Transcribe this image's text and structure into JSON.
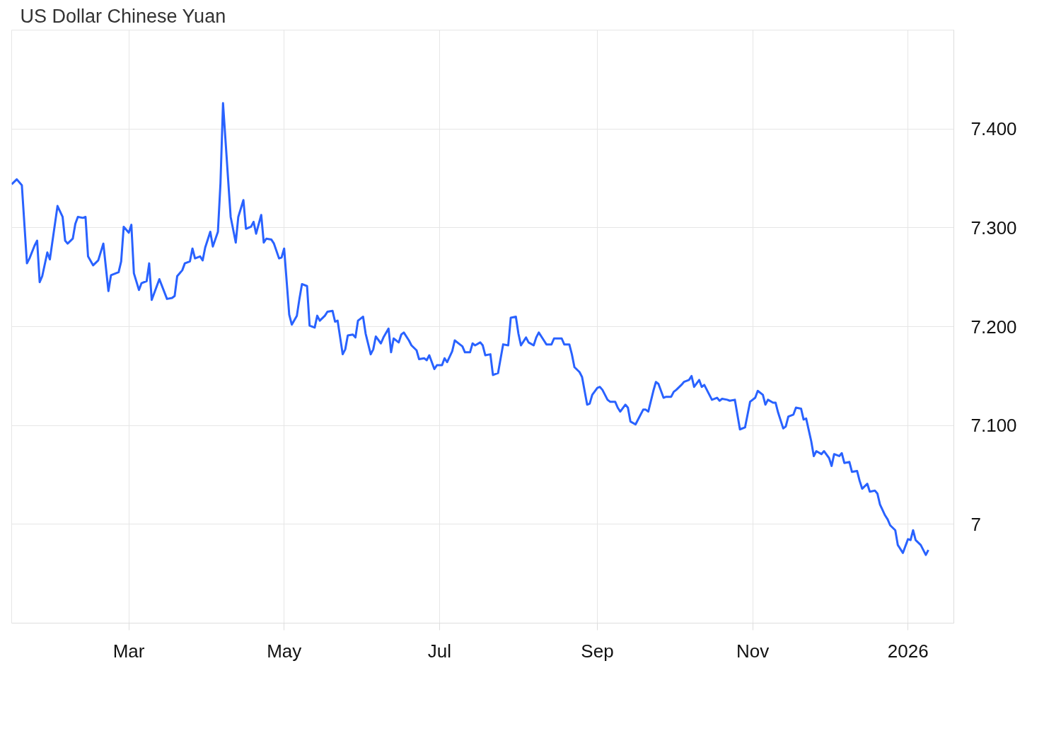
{
  "chart_data": {
    "type": "line",
    "title": "US Dollar Chinese Yuan",
    "x": [
      "2025-01-14",
      "2025-01-16",
      "2025-01-18",
      "2025-01-20",
      "2025-01-21",
      "2025-01-23",
      "2025-01-24",
      "2025-01-25",
      "2025-01-26",
      "2025-01-28",
      "2025-01-29",
      "2025-02-01",
      "2025-02-03",
      "2025-02-04",
      "2025-02-05",
      "2025-02-07",
      "2025-02-08",
      "2025-02-09",
      "2025-02-11",
      "2025-02-12",
      "2025-02-13",
      "2025-02-15",
      "2025-02-17",
      "2025-02-19",
      "2025-02-21",
      "2025-02-22",
      "2025-02-25",
      "2025-02-26",
      "2025-02-27",
      "2025-03-01",
      "2025-03-02",
      "2025-03-03",
      "2025-03-05",
      "2025-03-06",
      "2025-03-08",
      "2025-03-09",
      "2025-03-10",
      "2025-03-12",
      "2025-03-13",
      "2025-03-16",
      "2025-03-18",
      "2025-03-19",
      "2025-03-20",
      "2025-03-22",
      "2025-03-23",
      "2025-03-25",
      "2025-03-26",
      "2025-03-27",
      "2025-03-29",
      "2025-03-30",
      "2025-03-31",
      "2025-04-02",
      "2025-04-03",
      "2025-04-05",
      "2025-04-06",
      "2025-04-07",
      "2025-04-09",
      "2025-04-10",
      "2025-04-12",
      "2025-04-13",
      "2025-04-15",
      "2025-04-16",
      "2025-04-18",
      "2025-04-19",
      "2025-04-20",
      "2025-04-22",
      "2025-04-23",
      "2025-04-24",
      "2025-04-26",
      "2025-04-27",
      "2025-04-29",
      "2025-04-30",
      "2025-05-01",
      "2025-05-03",
      "2025-05-04",
      "2025-05-06",
      "2025-05-07",
      "2025-05-08",
      "2025-05-10",
      "2025-05-11",
      "2025-05-13",
      "2025-05-14",
      "2025-05-15",
      "2025-05-17",
      "2025-05-18",
      "2025-05-20",
      "2025-05-21",
      "2025-05-22",
      "2025-05-24",
      "2025-05-25",
      "2025-05-26",
      "2025-05-28",
      "2025-05-29",
      "2025-05-30",
      "2025-06-01",
      "2025-06-02",
      "2025-06-04",
      "2025-06-05",
      "2025-06-06",
      "2025-06-08",
      "2025-06-09",
      "2025-06-11",
      "2025-06-12",
      "2025-06-13",
      "2025-06-15",
      "2025-06-16",
      "2025-06-17",
      "2025-06-19",
      "2025-06-20",
      "2025-06-22",
      "2025-06-23",
      "2025-06-25",
      "2025-06-26",
      "2025-06-27",
      "2025-06-29",
      "2025-06-30",
      "2025-07-02",
      "2025-07-03",
      "2025-07-04",
      "2025-07-06",
      "2025-07-07",
      "2025-07-09",
      "2025-07-10",
      "2025-07-11",
      "2025-07-13",
      "2025-07-14",
      "2025-07-15",
      "2025-07-17",
      "2025-07-18",
      "2025-07-19",
      "2025-07-21",
      "2025-07-22",
      "2025-07-24",
      "2025-07-26",
      "2025-07-28",
      "2025-07-29",
      "2025-07-31",
      "2025-08-01",
      "2025-08-02",
      "2025-08-04",
      "2025-08-05",
      "2025-08-07",
      "2025-08-08",
      "2025-08-09",
      "2025-08-11",
      "2025-08-12",
      "2025-08-14",
      "2025-08-15",
      "2025-08-16",
      "2025-08-18",
      "2025-08-19",
      "2025-08-21",
      "2025-08-22",
      "2025-08-23",
      "2025-08-25",
      "2025-08-26",
      "2025-08-28",
      "2025-08-29",
      "2025-08-30",
      "2025-09-01",
      "2025-09-02",
      "2025-09-03",
      "2025-09-05",
      "2025-09-06",
      "2025-09-08",
      "2025-09-09",
      "2025-09-10",
      "2025-09-12",
      "2025-09-13",
      "2025-09-14",
      "2025-09-16",
      "2025-09-17",
      "2025-09-19",
      "2025-09-20",
      "2025-09-21",
      "2025-09-23",
      "2025-09-24",
      "2025-09-25",
      "2025-09-27",
      "2025-09-28",
      "2025-09-30",
      "2025-10-01",
      "2025-10-02",
      "2025-10-04",
      "2025-10-05",
      "2025-10-07",
      "2025-10-08",
      "2025-10-09",
      "2025-10-11",
      "2025-10-12",
      "2025-10-13",
      "2025-10-15",
      "2025-10-16",
      "2025-10-18",
      "2025-10-19",
      "2025-10-20",
      "2025-10-22",
      "2025-10-23",
      "2025-10-25",
      "2025-10-26",
      "2025-10-27",
      "2025-10-29",
      "2025-10-30",
      "2025-10-31",
      "2025-11-02",
      "2025-11-03",
      "2025-11-05",
      "2025-11-06",
      "2025-11-07",
      "2025-11-09",
      "2025-11-10",
      "2025-11-11",
      "2025-11-13",
      "2025-11-14",
      "2025-11-15",
      "2025-11-17",
      "2025-11-18",
      "2025-11-20",
      "2025-11-21",
      "2025-11-22",
      "2025-11-24",
      "2025-11-25",
      "2025-11-26",
      "2025-11-28",
      "2025-11-29",
      "2025-12-01",
      "2025-12-02",
      "2025-12-03",
      "2025-12-05",
      "2025-12-06",
      "2025-12-07",
      "2025-12-09",
      "2025-12-10",
      "2025-12-12",
      "2025-12-13",
      "2025-12-14",
      "2025-12-16",
      "2025-12-17",
      "2025-12-19",
      "2025-12-20",
      "2025-12-21",
      "2025-12-23",
      "2025-12-24",
      "2025-12-25",
      "2025-12-27",
      "2025-12-28",
      "2025-12-30",
      "2026-01-01",
      "2026-01-02",
      "2026-01-03",
      "2026-01-04",
      "2026-01-06",
      "2026-01-08",
      "2026-01-09"
    ],
    "series": [
      {
        "color": "#2962ff",
        "values": [
          7.344,
          7.349,
          7.343,
          7.264,
          7.269,
          7.282,
          7.287,
          7.245,
          7.251,
          7.275,
          7.268,
          7.322,
          7.311,
          7.287,
          7.284,
          7.289,
          7.304,
          7.311,
          7.31,
          7.311,
          7.271,
          7.262,
          7.267,
          7.284,
          7.236,
          7.252,
          7.255,
          7.266,
          7.301,
          7.295,
          7.303,
          7.254,
          7.237,
          7.244,
          7.246,
          7.264,
          7.227,
          7.241,
          7.248,
          7.228,
          7.229,
          7.231,
          7.251,
          7.257,
          7.264,
          7.266,
          7.279,
          7.269,
          7.271,
          7.267,
          7.28,
          7.296,
          7.281,
          7.296,
          7.345,
          7.426,
          7.349,
          7.311,
          7.285,
          7.311,
          7.328,
          7.299,
          7.301,
          7.306,
          7.294,
          7.313,
          7.285,
          7.289,
          7.288,
          7.284,
          7.269,
          7.27,
          7.279,
          7.212,
          7.202,
          7.211,
          7.228,
          7.243,
          7.241,
          7.201,
          7.199,
          7.211,
          7.206,
          7.211,
          7.215,
          7.216,
          7.205,
          7.206,
          7.172,
          7.177,
          7.191,
          7.192,
          7.189,
          7.206,
          7.21,
          7.193,
          7.172,
          7.177,
          7.19,
          7.183,
          7.189,
          7.198,
          7.174,
          7.188,
          7.184,
          7.192,
          7.194,
          7.186,
          7.181,
          7.176,
          7.167,
          7.168,
          7.166,
          7.171,
          7.157,
          7.161,
          7.161,
          7.168,
          7.164,
          7.175,
          7.186,
          7.182,
          7.18,
          7.174,
          7.174,
          7.183,
          7.181,
          7.184,
          7.181,
          7.171,
          7.172,
          7.151,
          7.153,
          7.182,
          7.181,
          7.209,
          7.21,
          7.193,
          7.181,
          7.189,
          7.184,
          7.181,
          7.189,
          7.194,
          7.186,
          7.182,
          7.182,
          7.188,
          7.188,
          7.188,
          7.182,
          7.182,
          7.172,
          7.159,
          7.154,
          7.149,
          7.121,
          7.122,
          7.131,
          7.138,
          7.139,
          7.136,
          7.126,
          7.124,
          7.124,
          7.118,
          7.114,
          7.121,
          7.118,
          7.104,
          7.101,
          7.106,
          7.116,
          7.116,
          7.114,
          7.135,
          7.144,
          7.142,
          7.128,
          7.129,
          7.129,
          7.134,
          7.136,
          7.141,
          7.144,
          7.146,
          7.15,
          7.139,
          7.146,
          7.139,
          7.141,
          7.131,
          7.126,
          7.128,
          7.125,
          7.127,
          7.126,
          7.125,
          7.126,
          7.111,
          7.096,
          7.098,
          7.111,
          7.124,
          7.128,
          7.135,
          7.131,
          7.121,
          7.126,
          7.123,
          7.123,
          7.113,
          7.097,
          7.099,
          7.109,
          7.111,
          7.118,
          7.117,
          7.106,
          7.107,
          7.084,
          7.069,
          7.074,
          7.071,
          7.074,
          7.067,
          7.059,
          7.071,
          7.069,
          7.072,
          7.062,
          7.063,
          7.053,
          7.054,
          7.044,
          7.036,
          7.041,
          7.033,
          7.034,
          7.031,
          7.02,
          7.009,
          7.005,
          6.999,
          6.994,
          6.979,
          6.971,
          6.985,
          6.984,
          6.994,
          6.984,
          6.979,
          6.969,
          6.974
        ]
      }
    ],
    "xlim": [
      "2025-01-14",
      "2026-01-19"
    ],
    "xticks": [
      {
        "value": "2025-03-01",
        "label": "Mar"
      },
      {
        "value": "2025-05-01",
        "label": "May"
      },
      {
        "value": "2025-07-01",
        "label": "Jul"
      },
      {
        "value": "2025-09-01",
        "label": "Sep"
      },
      {
        "value": "2025-11-01",
        "label": "Nov"
      },
      {
        "value": "2026-01-01",
        "label": "2026"
      }
    ],
    "ylim": [
      6.9,
      7.5
    ],
    "yticks": [
      7,
      {
        "value": 7.1,
        "label": "7.100"
      },
      {
        "value": 7.2,
        "label": "7.200"
      },
      {
        "value": 7.3,
        "label": "7.300"
      },
      {
        "value": 7.4,
        "label": "7.400"
      }
    ],
    "grid": true,
    "line_style": "solid",
    "marker": "none"
  }
}
